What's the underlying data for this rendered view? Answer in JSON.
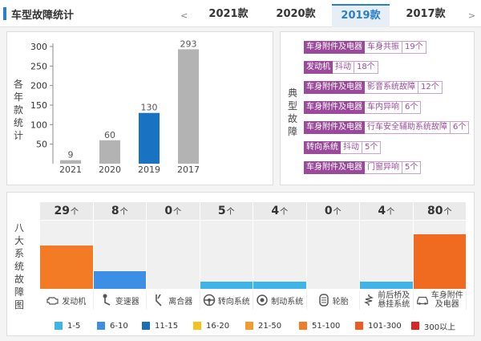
{
  "header": {
    "title": "车型故障统计",
    "prev": "<",
    "next": ">",
    "tabs": [
      "2021款",
      "2020款",
      "2019款",
      "2017款"
    ],
    "active_tab": 2
  },
  "year_chart": {
    "side_label": [
      "各",
      "年",
      "款",
      "统",
      "计"
    ],
    "chart_data": {
      "type": "bar",
      "categories": [
        "2021",
        "2020",
        "2019",
        "2017"
      ],
      "values": [
        9,
        60,
        130,
        293
      ],
      "colors": [
        "#b3b3b3",
        "#b3b3b3",
        "#1a73c2",
        "#b3b3b3"
      ],
      "yticks": [
        50,
        100,
        150,
        200,
        250,
        300
      ],
      "ylim": [
        0,
        300
      ]
    }
  },
  "typical_faults": {
    "side_label": [
      "典",
      "型",
      "故",
      "障"
    ],
    "items": [
      {
        "category": "车身附件及电器",
        "desc": "车身共振",
        "count": "19个"
      },
      {
        "category": "发动机",
        "desc": "抖动",
        "count": "18个"
      },
      {
        "category": "车身附件及电器",
        "desc": "影音系统故障",
        "count": "12个"
      },
      {
        "category": "车身附件及电器",
        "desc": "车内异响",
        "count": "6个"
      },
      {
        "category": "车身附件及电器",
        "desc": "行车安全辅助系统故障",
        "count": "6个"
      },
      {
        "category": "转向系统",
        "desc": "抖动",
        "count": "5个"
      },
      {
        "category": "车身附件及电器",
        "desc": "门窗异响",
        "count": "5个"
      }
    ]
  },
  "systems": {
    "side_label": [
      "八",
      "大",
      "系",
      "统",
      "故",
      "障",
      "图"
    ],
    "unit": "个",
    "items": [
      {
        "name": "发动机",
        "count": "29",
        "level": 0.63,
        "color": "#f47b26",
        "icon": "engine-icon"
      },
      {
        "name": "变速器",
        "count": "8",
        "level": 0.26,
        "color": "#3d8fe6",
        "icon": "gearshift-icon"
      },
      {
        "name": "离合器",
        "count": "0",
        "level": 0,
        "color": "#3d8fe6",
        "icon": "clutch-pedal-icon"
      },
      {
        "name": "转向系统",
        "count": "5",
        "level": 0.11,
        "color": "#3fb4e8",
        "icon": "steering-wheel-icon"
      },
      {
        "name": "制动系统",
        "count": "4",
        "level": 0.11,
        "color": "#3fb4e8",
        "icon": "brake-icon"
      },
      {
        "name": "轮胎",
        "count": "0",
        "level": 0,
        "color": "#3fb4e8",
        "icon": "tire-icon"
      },
      {
        "name": "前后桥及悬挂系统",
        "name_line1": "前后桥及",
        "name_line2": "悬挂系统",
        "count": "4",
        "level": 0.11,
        "color": "#3fb4e8",
        "icon": "suspension-icon"
      },
      {
        "name": "车身附件及电器",
        "name_line1": "车身附件",
        "name_line2": "及电器",
        "count": "80",
        "level": 0.8,
        "color": "#f06a1f",
        "icon": "car-body-icon"
      }
    ]
  },
  "legend": [
    {
      "label": "1-5",
      "color": "#3fb4e8"
    },
    {
      "label": "6-10",
      "color": "#3d8fe6"
    },
    {
      "label": "11-15",
      "color": "#1a6fb8"
    },
    {
      "label": "16-20",
      "color": "#f5c21b"
    },
    {
      "label": "21-50",
      "color": "#f49a2e"
    },
    {
      "label": "51-100",
      "color": "#f47b26"
    },
    {
      "label": "101-300",
      "color": "#f05a1c"
    },
    {
      "label": "300以上",
      "color": "#e02424"
    }
  ]
}
